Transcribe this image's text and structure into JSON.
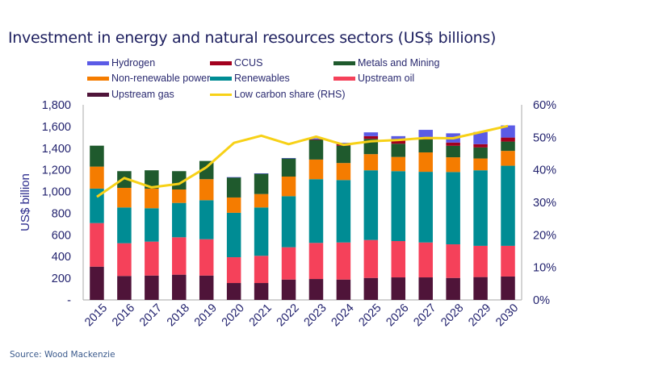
{
  "chart_data": {
    "type": "bar",
    "stacked": true,
    "title": "Investment in energy and natural resources sectors (US$ billions)",
    "source": "Source: Wood Mackenzie",
    "ylabel": "US$ billion",
    "ylim": [
      0,
      1800
    ],
    "yticks": [
      "-",
      "200",
      "400",
      "600",
      "800",
      "1,000",
      "1,200",
      "1,400",
      "1,600",
      "1,800"
    ],
    "y2lim": [
      0,
      60
    ],
    "y2ticks": [
      "0%",
      "10%",
      "20%",
      "30%",
      "40%",
      "50%",
      "60%"
    ],
    "categories": [
      "2015",
      "2016",
      "2017",
      "2018",
      "2019",
      "2020",
      "2021",
      "2022",
      "2023",
      "2024",
      "2025",
      "2026",
      "2027",
      "2028",
      "2029",
      "2030"
    ],
    "legend_position": "top",
    "series": [
      {
        "name": "Upstream gas",
        "color": "#4f1439",
        "values": [
          307,
          221,
          225,
          233,
          225,
          156,
          156,
          188,
          193,
          188,
          203,
          208,
          208,
          203,
          211,
          216
        ]
      },
      {
        "name": "Upstream oil",
        "color": "#f5415a",
        "values": [
          402,
          302,
          313,
          345,
          335,
          238,
          251,
          298,
          333,
          342,
          350,
          335,
          322,
          310,
          288,
          283
        ]
      },
      {
        "name": "Renewables",
        "color": "#008c94",
        "values": [
          318,
          330,
          308,
          317,
          360,
          410,
          446,
          471,
          588,
          576,
          643,
          645,
          652,
          667,
          697,
          739
        ]
      },
      {
        "name": "Non-renewable power",
        "color": "#f57c00",
        "values": [
          203,
          181,
          181,
          124,
          194,
          141,
          124,
          181,
          181,
          157,
          149,
          131,
          179,
          136,
          109,
          137
        ]
      },
      {
        "name": "Metals and Mining",
        "color": "#1f5a2d",
        "values": [
          193,
          154,
          169,
          169,
          168,
          186,
          189,
          169,
          183,
          160,
          141,
          122,
          119,
          106,
          102,
          86
        ]
      },
      {
        "name": "CCUS",
        "color": "#a3001e",
        "values": [
          0,
          0,
          0,
          0,
          0,
          0,
          0,
          0,
          3,
          15,
          25,
          30,
          17,
          30,
          30,
          37
        ]
      },
      {
        "name": "Hydrogen",
        "color": "#5b5be6",
        "values": [
          0,
          0,
          0,
          0,
          0,
          2,
          2,
          2,
          10,
          12,
          35,
          40,
          72,
          85,
          112,
          112
        ]
      }
    ],
    "line_series": {
      "name": "Low carbon share (RHS)",
      "color": "#f7d117",
      "axis": "right",
      "values": [
        31.7,
        37.5,
        34.6,
        35.7,
        40.8,
        48.3,
        50.5,
        47.9,
        50.2,
        47.7,
        48.8,
        49.2,
        49.8,
        49.7,
        51.6,
        53.5
      ]
    },
    "legend": [
      {
        "label": "Hydrogen",
        "color": "#5b5be6",
        "kind": "bar"
      },
      {
        "label": "CCUS",
        "color": "#a3001e",
        "kind": "bar"
      },
      {
        "label": "Metals and Mining",
        "color": "#1f5a2d",
        "kind": "bar"
      },
      {
        "label": "Non-renewable power",
        "color": "#f57c00",
        "kind": "bar"
      },
      {
        "label": "Renewables",
        "color": "#008c94",
        "kind": "bar"
      },
      {
        "label": "Upstream oil",
        "color": "#f5415a",
        "kind": "bar"
      },
      {
        "label": "Upstream gas",
        "color": "#4f1439",
        "kind": "bar"
      },
      {
        "label": "Low carbon share (RHS)",
        "color": "#f7d117",
        "kind": "line"
      }
    ]
  }
}
